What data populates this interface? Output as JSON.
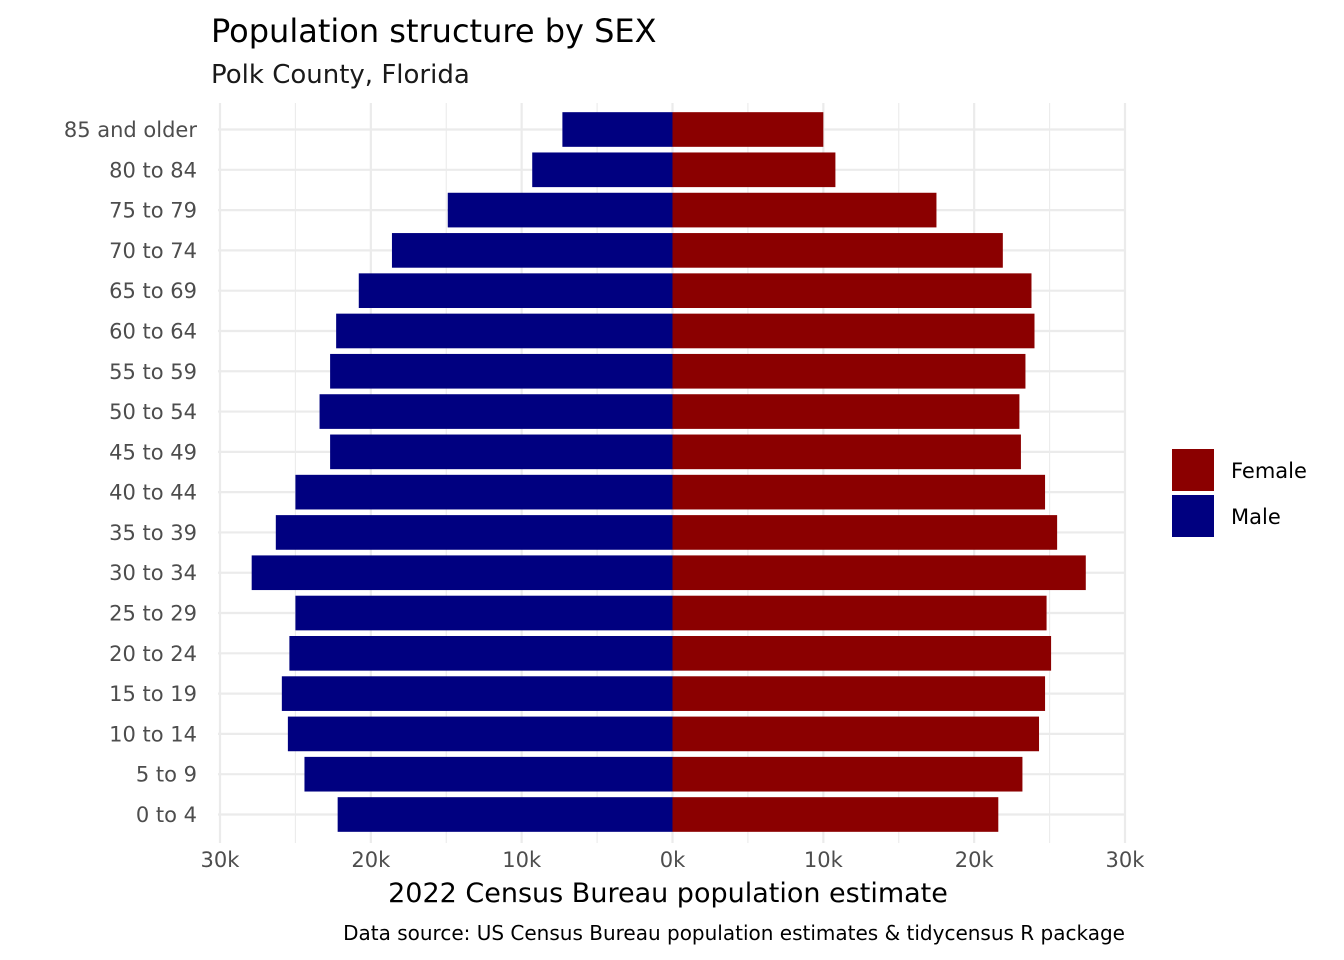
{
  "chart_data": {
    "type": "bar",
    "orientation": "horizontal",
    "layout": "population-pyramid",
    "title": "Population structure by SEX",
    "subtitle": "Polk County, Florida",
    "xlabel": "2022 Census Bureau population estimate",
    "ylabel": "",
    "caption": "Data source: US Census Bureau population estimates & tidycensus R package",
    "xlim": [
      -30000,
      30000
    ],
    "x_ticks": [
      -30000,
      -20000,
      -10000,
      0,
      10000,
      20000,
      30000
    ],
    "x_tick_labels": [
      "30k",
      "20k",
      "10k",
      "0k",
      "10k",
      "20k",
      "30k"
    ],
    "categories": [
      "0 to 4",
      "5 to 9",
      "10 to 14",
      "15 to 19",
      "20 to 24",
      "25 to 29",
      "30 to 34",
      "35 to 39",
      "40 to 44",
      "45 to 49",
      "50 to 54",
      "55 to 59",
      "60 to 64",
      "65 to 69",
      "70 to 74",
      "75 to 79",
      "80 to 84",
      "85 and older"
    ],
    "series": [
      {
        "name": "Female",
        "color": "#8B0000",
        "values": [
          21600,
          23200,
          24300,
          24700,
          25100,
          24800,
          27400,
          25500,
          24700,
          23100,
          23000,
          23400,
          24000,
          23800,
          21900,
          17500,
          10800,
          10000
        ]
      },
      {
        "name": "Male",
        "color": "#000080",
        "values": [
          -22200,
          -24400,
          -25500,
          -25900,
          -25400,
          -25000,
          -27900,
          -26300,
          -25000,
          -22700,
          -23400,
          -22700,
          -22300,
          -20800,
          -18600,
          -14900,
          -9300,
          -7300
        ]
      }
    ],
    "grid": true,
    "legend": {
      "position": "right",
      "entries": [
        "Female",
        "Male"
      ]
    }
  }
}
